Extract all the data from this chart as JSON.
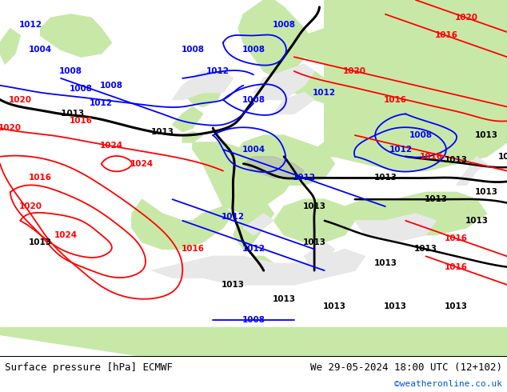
{
  "title_left": "Surface pressure [hPa] ECMWF",
  "title_right": "We 29-05-2024 18:00 UTC (12+102)",
  "copyright": "©weatheronline.co.uk",
  "fig_width": 6.34,
  "fig_height": 4.9,
  "dpi": 100,
  "label_fontsize": 9,
  "copyright_color": "#0055cc",
  "text_color": "#000000",
  "sea_color": "#e8e8e8",
  "land_color": "#c8e8a8",
  "mountain_color": "#b0b0b0",
  "bottom_bg": "#d8d8d8",
  "map_bg": "#e0e0e0",
  "xlim": [
    0,
    100
  ],
  "ylim": [
    0,
    100
  ]
}
